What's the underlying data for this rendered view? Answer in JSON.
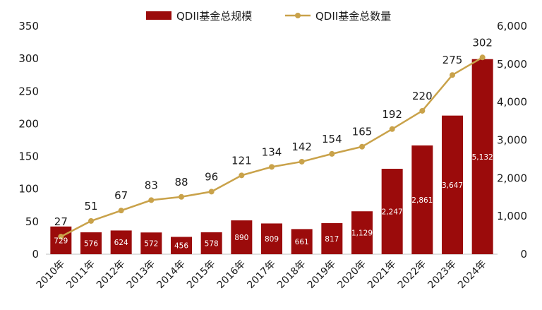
{
  "chart_data": {
    "type": "bar+line",
    "categories": [
      "2010年",
      "2011年",
      "2012年",
      "2013年",
      "2014年",
      "2015年",
      "2016年",
      "2017年",
      "2018年",
      "2019年",
      "2020年",
      "2021年",
      "2022年",
      "2023年",
      "2024年"
    ],
    "series": [
      {
        "name": "QDII基金总规模",
        "type": "bar",
        "axis": "right",
        "values": [
          729,
          576,
          624,
          572,
          456,
          578,
          890,
          809,
          661,
          817,
          1129,
          2247,
          2861,
          3647,
          5132
        ],
        "labels": [
          "729",
          "576",
          "624",
          "572",
          "456",
          "578",
          "890",
          "809",
          "661",
          "817",
          "1,129",
          "2,247",
          "2,861",
          "3,647",
          "5,132"
        ],
        "color": "#9b0b0b"
      },
      {
        "name": "QDII基金总数量",
        "type": "line",
        "axis": "left",
        "values": [
          27,
          51,
          67,
          83,
          88,
          96,
          121,
          134,
          142,
          154,
          165,
          192,
          220,
          275,
          302
        ],
        "color": "#c9a24a"
      }
    ],
    "y_left": {
      "min": 0,
      "max": 350,
      "ticks": [
        "0",
        "50",
        "100",
        "150",
        "200",
        "250",
        "300",
        "350"
      ]
    },
    "y_right": {
      "min": 0,
      "max": 6000,
      "ticks": [
        "0",
        "1,000",
        "2,000",
        "3,000",
        "4,000",
        "5,000",
        "6,000"
      ]
    },
    "legend_position": "top",
    "grid": false
  }
}
